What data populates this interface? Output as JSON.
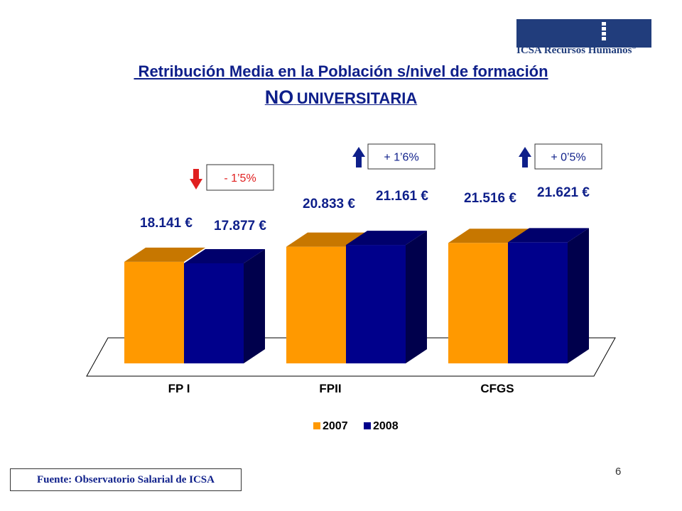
{
  "brand": {
    "logo_text": "ICSA Recursos Humanos",
    "logo_mark": "®",
    "color": "#213d7c"
  },
  "title": {
    "line1": " Retribución Media en la Población s/nivel de formación",
    "line2_big": "NO",
    "line2_small": "UNIVERSITARIA"
  },
  "chart_data": {
    "type": "bar",
    "categories": [
      "FP I",
      "FPII",
      "CFGS"
    ],
    "series": [
      {
        "name": "2007",
        "color": "#ff9900",
        "values": [
          18141,
          20833,
          21516
        ],
        "labels": [
          "18.141 €",
          "20.833 €",
          "21.516 €"
        ]
      },
      {
        "name": "2008",
        "color": "#00008b",
        "values": [
          17877,
          21161,
          21621
        ],
        "labels": [
          "17.877 €",
          "21.161 €",
          "21.621 €"
        ]
      }
    ],
    "changes": [
      {
        "category": "FP I",
        "text": "- 1’5%",
        "direction": "down",
        "color": "#e02020"
      },
      {
        "category": "FPII",
        "text": "+ 1’6%",
        "direction": "up",
        "color": "#0e1f8a"
      },
      {
        "category": "CFGS",
        "text": "+ 0’5%",
        "direction": "up",
        "color": "#0e1f8a"
      }
    ],
    "ylim": [
      0,
      30000
    ],
    "legend_position": "bottom",
    "grid": false
  },
  "footer": {
    "source": "Fuente: Observatorio Salarial de ICSA",
    "page_number": "6"
  }
}
